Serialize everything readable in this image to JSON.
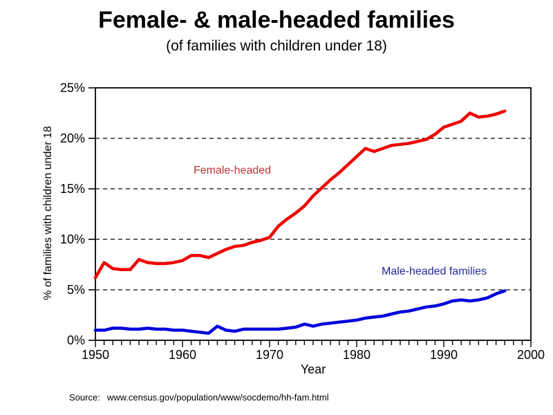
{
  "header": {
    "title": "Female- & male-headed families",
    "subtitle": "(of families with children under 18)"
  },
  "source": {
    "label": "Source:",
    "url": "www.census.gov/population/www/socdemo/hh-fam.html"
  },
  "chart_data": {
    "type": "line",
    "title": "Female- & male-headed families",
    "subtitle": "(of families with children under 18)",
    "xlabel": "Year",
    "ylabel": "% of families with children under 18",
    "xlim": [
      1950,
      2000
    ],
    "ylim": [
      0,
      25
    ],
    "grid": "horizontal dashed",
    "y_gridlines": [
      5,
      10,
      15,
      20
    ],
    "y_ticks": [
      0,
      5,
      10,
      15,
      20,
      25
    ],
    "y_tick_labels": [
      "0%",
      "5%",
      "10%",
      "15%",
      "20%",
      "25%"
    ],
    "x_major_ticks": [
      1950,
      1960,
      1970,
      1980,
      1990,
      2000
    ],
    "x_tick_labels": [
      "1950",
      "1960",
      "1970",
      "1980",
      "1990",
      "2000"
    ],
    "x_minor_tick_step": 1,
    "legend_position": "inline labels inside plot",
    "axis_color": "#000000",
    "x": [
      1950,
      1951,
      1952,
      1953,
      1954,
      1955,
      1956,
      1957,
      1958,
      1959,
      1960,
      1961,
      1962,
      1963,
      1964,
      1965,
      1966,
      1967,
      1968,
      1969,
      1970,
      1971,
      1972,
      1973,
      1974,
      1975,
      1976,
      1977,
      1978,
      1979,
      1980,
      1981,
      1982,
      1983,
      1984,
      1985,
      1986,
      1987,
      1988,
      1989,
      1990,
      1991,
      1992,
      1993,
      1994,
      1995,
      1996,
      1997
    ],
    "series": [
      {
        "name": "Female-headed",
        "color": "#ee0000",
        "label_color": "#c03434",
        "values": [
          6.2,
          7.7,
          7.1,
          7.0,
          7.0,
          8.0,
          7.7,
          7.6,
          7.6,
          7.7,
          7.9,
          8.4,
          8.4,
          8.2,
          8.6,
          9.0,
          9.3,
          9.4,
          9.7,
          9.9,
          10.2,
          11.3,
          12.0,
          12.6,
          13.3,
          14.3,
          15.1,
          15.9,
          16.6,
          17.4,
          18.2,
          19.0,
          18.7,
          19.0,
          19.3,
          19.4,
          19.5,
          19.7,
          19.9,
          20.4,
          21.1,
          21.4,
          21.7,
          22.5,
          22.1,
          22.2,
          22.4,
          22.7
        ]
      },
      {
        "name": "Male-headed families",
        "color": "#0000dd",
        "label_color": "#26269b",
        "values": [
          1.0,
          1.0,
          1.2,
          1.2,
          1.1,
          1.1,
          1.2,
          1.1,
          1.1,
          1.0,
          1.0,
          0.9,
          0.8,
          0.7,
          1.4,
          1.0,
          0.9,
          1.1,
          1.1,
          1.1,
          1.1,
          1.1,
          1.2,
          1.3,
          1.6,
          1.4,
          1.6,
          1.7,
          1.8,
          1.9,
          2.0,
          2.2,
          2.3,
          2.4,
          2.6,
          2.8,
          2.9,
          3.1,
          3.3,
          3.4,
          3.6,
          3.9,
          4.0,
          3.9,
          4.0,
          4.2,
          4.6,
          4.9
        ]
      }
    ]
  }
}
